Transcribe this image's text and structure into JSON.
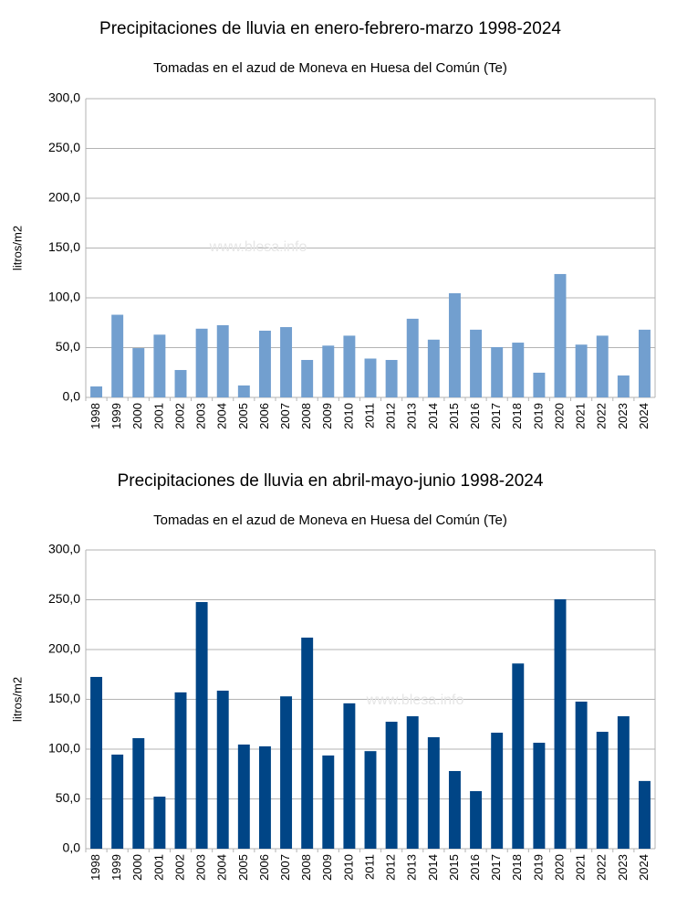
{
  "chart_data": [
    {
      "type": "bar",
      "title": "Precipitaciones de lluvia en enero-febrero-marzo 1998-2024",
      "subtitle": "Tomadas en el azud de Moneva en Huesa del Común (Te)",
      "ylabel": "litros/m2",
      "watermark": "www.blesa.info",
      "categories": [
        "1998",
        "1999",
        "2000",
        "2001",
        "2002",
        "2003",
        "2004",
        "2005",
        "2006",
        "2007",
        "2008",
        "2009",
        "2010",
        "2011",
        "2012",
        "2013",
        "2014",
        "2015",
        "2016",
        "2017",
        "2018",
        "2019",
        "2020",
        "2021",
        "2022",
        "2023",
        "2024"
      ],
      "values": [
        11,
        83,
        49.5,
        63,
        27.5,
        69,
        72.5,
        12,
        67,
        70.6,
        37.6,
        52,
        62,
        39,
        37.6,
        79,
        58,
        104.6,
        68,
        50.5,
        55,
        24.8,
        123.9,
        53,
        62,
        22,
        68
      ],
      "color": "#729fcf",
      "ylim": [
        0,
        300
      ],
      "yticks": [
        {
          "value": 0,
          "label": "0,0"
        },
        {
          "value": 50,
          "label": "50,0"
        },
        {
          "value": 100,
          "label": "100,0"
        },
        {
          "value": 150,
          "label": "150,0"
        },
        {
          "value": 200,
          "label": "200,0"
        },
        {
          "value": 250,
          "label": "250,0"
        },
        {
          "value": 300,
          "label": "300,0"
        }
      ],
      "grid": true
    },
    {
      "type": "bar",
      "title": "Precipitaciones de lluvia en abril-mayo-junio 1998-2024",
      "subtitle": "Tomadas en el azud de Moneva en Huesa del Común (Te)",
      "ylabel": "litros/m2",
      "watermark": "www.blesa.info",
      "categories": [
        "1998",
        "1999",
        "2000",
        "2001",
        "2002",
        "2003",
        "2004",
        "2005",
        "2006",
        "2007",
        "2008",
        "2009",
        "2010",
        "2011",
        "2012",
        "2013",
        "2014",
        "2015",
        "2016",
        "2017",
        "2018",
        "2019",
        "2020",
        "2021",
        "2022",
        "2023",
        "2024"
      ],
      "values": [
        172.5,
        94.5,
        111,
        52.3,
        157,
        247.7,
        158.7,
        104.6,
        102.8,
        153,
        212,
        93.6,
        146,
        98,
        127.5,
        133,
        112,
        78,
        57.8,
        116.5,
        186,
        106.4,
        250.5,
        147.7,
        117.4,
        133,
        68
      ],
      "color": "#004586",
      "ylim": [
        0,
        300
      ],
      "yticks": [
        {
          "value": 0,
          "label": "0,0"
        },
        {
          "value": 50,
          "label": "50,0"
        },
        {
          "value": 100,
          "label": "100,0"
        },
        {
          "value": 150,
          "label": "150,0"
        },
        {
          "value": 200,
          "label": "200,0"
        },
        {
          "value": 250,
          "label": "250,0"
        },
        {
          "value": 300,
          "label": "300,0"
        }
      ],
      "grid": true
    }
  ]
}
